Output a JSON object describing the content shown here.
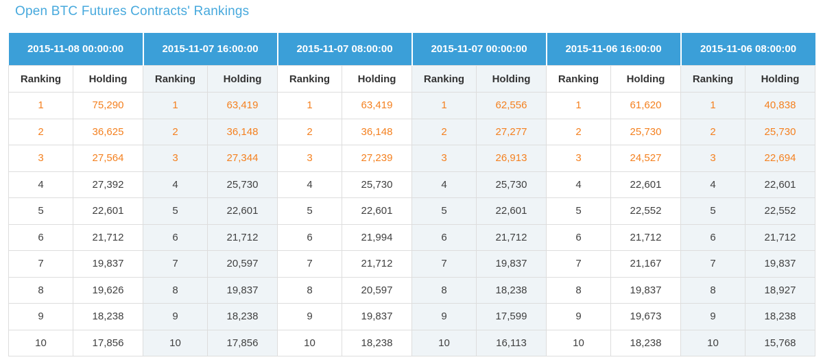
{
  "page_title": "Open BTC Futures Contracts' Rankings",
  "colors": {
    "header_blue": "#3b9fd8",
    "title_blue": "#47a9dd",
    "top3_orange": "#f4801f",
    "body_text": "#404040",
    "border": "#dddddd",
    "column_stripe": "#eff4f7"
  },
  "table": {
    "sub_headers": [
      "Ranking",
      "Holding"
    ],
    "columns": [
      {
        "timestamp": "2015-11-08 00:00:00",
        "rankings": [
          "1",
          "2",
          "3",
          "4",
          "5",
          "6",
          "7",
          "8",
          "9",
          "10"
        ],
        "holdings": [
          "75,290",
          "36,625",
          "27,564",
          "27,392",
          "22,601",
          "21,712",
          "19,837",
          "19,626",
          "18,238",
          "17,856"
        ]
      },
      {
        "timestamp": "2015-11-07 16:00:00",
        "rankings": [
          "1",
          "2",
          "3",
          "4",
          "5",
          "6",
          "7",
          "8",
          "9",
          "10"
        ],
        "holdings": [
          "63,419",
          "36,148",
          "27,344",
          "25,730",
          "22,601",
          "21,712",
          "20,597",
          "19,837",
          "18,238",
          "17,856"
        ]
      },
      {
        "timestamp": "2015-11-07 08:00:00",
        "rankings": [
          "1",
          "2",
          "3",
          "4",
          "5",
          "6",
          "7",
          "8",
          "9",
          "10"
        ],
        "holdings": [
          "63,419",
          "36,148",
          "27,239",
          "25,730",
          "22,601",
          "21,994",
          "21,712",
          "20,597",
          "19,837",
          "18,238"
        ]
      },
      {
        "timestamp": "2015-11-07 00:00:00",
        "rankings": [
          "1",
          "2",
          "3",
          "4",
          "5",
          "6",
          "7",
          "8",
          "9",
          "10"
        ],
        "holdings": [
          "62,556",
          "27,277",
          "26,913",
          "25,730",
          "22,601",
          "21,712",
          "19,837",
          "18,238",
          "17,599",
          "16,113"
        ]
      },
      {
        "timestamp": "2015-11-06 16:00:00",
        "rankings": [
          "1",
          "2",
          "3",
          "4",
          "5",
          "6",
          "7",
          "8",
          "9",
          "10"
        ],
        "holdings": [
          "61,620",
          "25,730",
          "24,527",
          "22,601",
          "22,552",
          "21,712",
          "21,167",
          "19,837",
          "19,673",
          "18,238"
        ]
      },
      {
        "timestamp": "2015-11-06 08:00:00",
        "rankings": [
          "1",
          "2",
          "3",
          "4",
          "5",
          "6",
          "7",
          "8",
          "9",
          "10"
        ],
        "holdings": [
          "40,838",
          "25,730",
          "22,694",
          "22,601",
          "22,552",
          "21,712",
          "19,837",
          "18,927",
          "18,238",
          "15,768"
        ]
      }
    ],
    "top3_row_count": 3
  }
}
